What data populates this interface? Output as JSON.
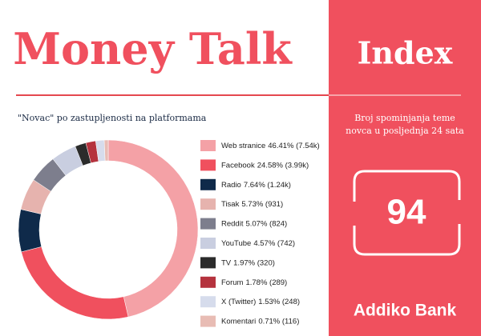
{
  "header": {
    "title": "Money Talk"
  },
  "panel": {
    "title": "Index",
    "description": "Broj spominjanja teme novca u posljednja 24 sata",
    "value": 94,
    "brand": "Addiko Bank"
  },
  "chart_data": {
    "type": "donut",
    "subtitle": "\"Novac\" po zastupljenosti na platformama",
    "categories": [
      "Web stranice",
      "Facebook",
      "Radio",
      "Tisak",
      "Reddit",
      "YouTube",
      "TV",
      "Forum",
      "X (Twitter)",
      "Komentari"
    ],
    "values": [
      46.41,
      24.58,
      7.64,
      5.73,
      5.07,
      4.57,
      1.97,
      1.78,
      1.53,
      0.71
    ],
    "value_labels": [
      "46.41% (7.54k)",
      "24.58% (3.99k)",
      "7.64% (1.24k)",
      "5.73% (931)",
      "5.07% (824)",
      "4.57% (742)",
      "1.97% (320)",
      "1.78% (289)",
      "1.53% (248)",
      "0.71% (116)"
    ],
    "colors": [
      "#f4a1a6",
      "#f0505e",
      "#0f2a4a",
      "#e6b3ae",
      "#7d7e8d",
      "#c9cee0",
      "#2b2b2b",
      "#b5333e",
      "#d6dcec",
      "#e8bcb4"
    ]
  }
}
